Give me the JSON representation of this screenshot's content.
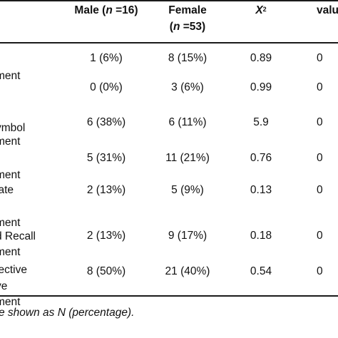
{
  "headers": {
    "male": "Male (n =16)",
    "female_line1": "Female",
    "female_line2": "(n =53)",
    "x2": "X²",
    "pvalue_partial": "valu"
  },
  "rows": [
    {
      "label": [
        "",
        "ment"
      ],
      "male": "1 (6%)",
      "female": "8 (15%)",
      "x2": "0.89",
      "p": "0"
    },
    {
      "label": [
        ""
      ],
      "male": "0 (0%)",
      "female": "3 (6%)",
      "x2": "0.99",
      "p": "0"
    },
    {
      "label": [
        "ymbol",
        "ment"
      ],
      "male": "6 (38%)",
      "female": "6 (11%)",
      "x2": "5.9",
      "p": "0"
    },
    {
      "label": [
        "",
        "ment"
      ],
      "male": "5 (31%)",
      "female": "11 (21%)",
      "x2": "0.76",
      "p": "0"
    },
    {
      "label": [
        "iate",
        "",
        "ment"
      ],
      "male": "2 (13%)",
      "female": "5 (9%)",
      "x2": "0.13",
      "p": "0"
    },
    {
      "label": [
        "d Recall",
        "ment"
      ],
      "male": "2 (13%)",
      "female": "9 (17%)",
      "x2": "0.18",
      "p": "0"
    },
    {
      "label": [
        "jective",
        "ve",
        "ment"
      ],
      "male": "8 (50%)",
      "female": "21 (40%)",
      "x2": "0.54",
      "p": "0"
    }
  ],
  "footnote": "e shown as N (percentage)."
}
